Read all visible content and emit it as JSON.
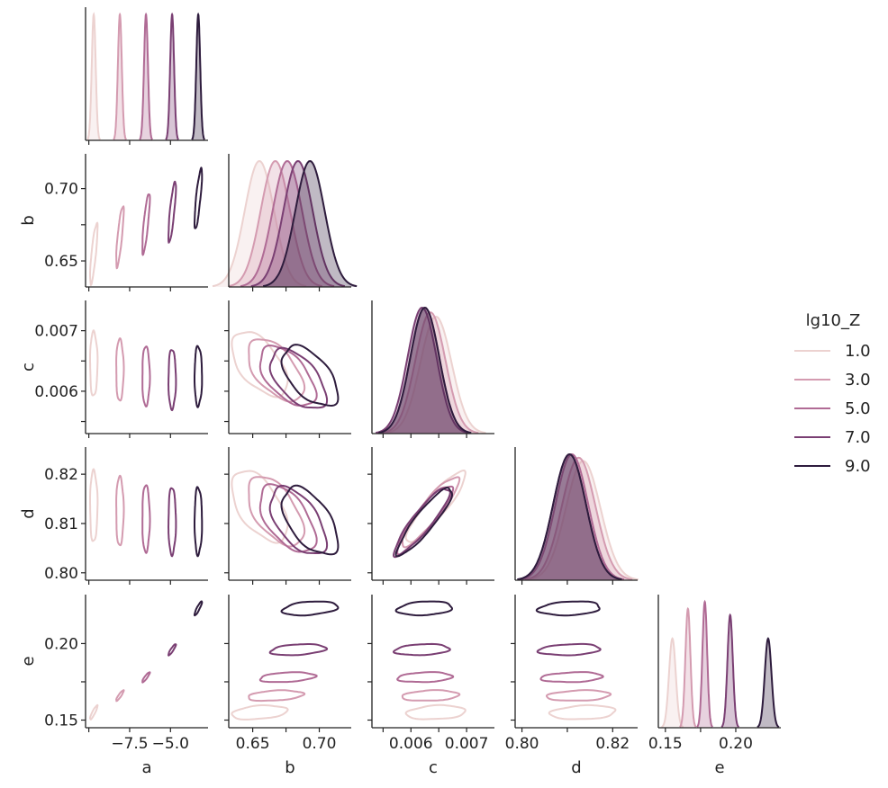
{
  "chart_data": {
    "type": "pairplot-kde",
    "variables": [
      "a",
      "b",
      "c",
      "d",
      "e"
    ],
    "hue_name": "lg10_Z",
    "legend_position": "right",
    "colors": [
      "#ecd2d0",
      "#d49bb0",
      "#b06b95",
      "#7a3f73",
      "#2e1c3d"
    ],
    "groups": [
      {
        "label": "1.0",
        "a": -9.7,
        "b": 0.655,
        "c": 0.00645,
        "d": 0.8135,
        "e": 0.155,
        "sd": {
          "a": 0.12,
          "b": 0.011,
          "c": 0.00028,
          "d": 0.0038,
          "e": 0.0024
        },
        "corr": {
          "ab": 0.8,
          "cd": 0.9,
          "ae": 0.9,
          "bc": -0.55,
          "bd": -0.55,
          "be": 0.3,
          "ce": 0.2,
          "de": 0.2
        }
      },
      {
        "label": "3.0",
        "a": -8.1,
        "b": 0.667,
        "c": 0.00635,
        "d": 0.8125,
        "e": 0.166,
        "sd": {
          "a": 0.12,
          "b": 0.011,
          "c": 0.00027,
          "d": 0.0037,
          "e": 0.0018
        },
        "corr": {
          "ab": 0.8,
          "cd": 0.9,
          "ae": 0.9,
          "bc": -0.55,
          "bd": -0.55,
          "be": 0.3,
          "ce": 0.2,
          "de": 0.2
        }
      },
      {
        "label": "5.0",
        "a": -6.5,
        "b": 0.676,
        "c": 0.00625,
        "d": 0.811,
        "e": 0.178,
        "sd": {
          "a": 0.12,
          "b": 0.011,
          "c": 0.00026,
          "d": 0.0036,
          "e": 0.0017
        },
        "corr": {
          "ab": 0.8,
          "cd": 0.9,
          "ae": 0.9,
          "bc": -0.55,
          "bd": -0.55,
          "be": 0.3,
          "ce": 0.2,
          "de": 0.2
        }
      },
      {
        "label": "7.0",
        "a": -4.9,
        "b": 0.684,
        "c": 0.0062,
        "d": 0.8105,
        "e": 0.196,
        "sd": {
          "a": 0.12,
          "b": 0.011,
          "c": 0.00026,
          "d": 0.0036,
          "e": 0.0019
        },
        "corr": {
          "ab": 0.8,
          "cd": 0.9,
          "ae": 0.9,
          "bc": -0.55,
          "bd": -0.55,
          "be": 0.3,
          "ce": 0.2,
          "de": 0.2
        }
      },
      {
        "label": "9.0",
        "a": -3.3,
        "b": 0.693,
        "c": 0.00625,
        "d": 0.8105,
        "e": 0.223,
        "sd": {
          "a": 0.12,
          "b": 0.011,
          "c": 0.00026,
          "d": 0.0036,
          "e": 0.0024
        },
        "corr": {
          "ab": 0.8,
          "cd": 0.9,
          "ae": 0.9,
          "bc": -0.55,
          "bd": -0.55,
          "be": 0.3,
          "ce": 0.2,
          "de": 0.2
        }
      }
    ],
    "axes": {
      "a": {
        "range": [
          -10.2,
          -2.7
        ],
        "ticks": [
          -7.5,
          -5.0
        ],
        "tick_labels": [
          "−7.5",
          "−5.0"
        ],
        "minor_ticks": [
          -10.0
        ],
        "xlabel": "a"
      },
      "b": {
        "range": [
          0.632,
          0.724
        ],
        "ticks": [
          0.65,
          0.7
        ],
        "tick_labels": [
          "0.65",
          "0.70"
        ],
        "minor_ticks": [
          0.675
        ],
        "ylabel": "b",
        "xlabel": "b",
        "xtick_labels": [
          "0.65",
          "0.70"
        ]
      },
      "c": {
        "range": [
          0.0053,
          0.0075
        ],
        "ticks": [
          0.006,
          0.007
        ],
        "tick_labels": [
          "0.006",
          "0.007"
        ],
        "minor_ticks": [
          0.0055,
          0.0065
        ],
        "ylabel": "c",
        "xlabel": "c",
        "ytick_labels": [
          "0.006",
          "0.007"
        ]
      },
      "d": {
        "range": [
          0.7985,
          0.8255
        ],
        "ticks": [
          0.8,
          0.81,
          0.82
        ],
        "tick_labels": [
          "0.80",
          "0.81",
          "0.82"
        ],
        "xtick_labels": [
          "0.80",
          "",
          "0.82"
        ],
        "ylabel": "d",
        "xlabel": "d"
      },
      "e": {
        "range": [
          0.145,
          0.232
        ],
        "ticks": [
          0.15,
          0.2
        ],
        "tick_labels": [
          "0.15",
          "0.20"
        ],
        "minor_ticks": [
          0.175
        ],
        "ylabel": "e",
        "xlabel": "e"
      }
    }
  }
}
